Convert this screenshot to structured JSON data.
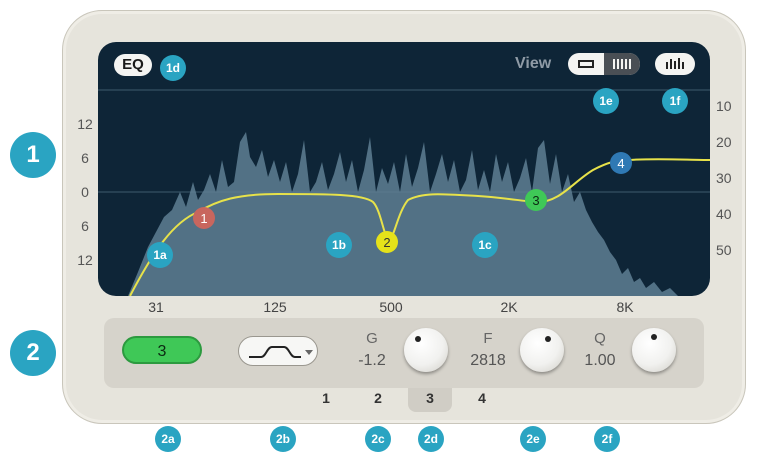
{
  "eq_window": {
    "eq_button_label": "EQ",
    "view_label": "View",
    "left_axis_labels": [
      "12",
      "6",
      "0",
      "6",
      "12"
    ],
    "right_axis_labels": [
      "10",
      "20",
      "30",
      "40",
      "50"
    ],
    "x_axis_labels": [
      "31",
      "125",
      "500",
      "2K",
      "8K"
    ],
    "band_nodes": [
      {
        "label": "1",
        "color": "#c8665e"
      },
      {
        "label": "2",
        "color": "#e5e21a"
      },
      {
        "label": "3",
        "color": "#3fc857"
      },
      {
        "label": "4",
        "color": "#2f79b4"
      }
    ]
  },
  "controls": {
    "selected_band": "3",
    "gain_label": "G",
    "gain_value": "-1.2",
    "freq_label": "F",
    "freq_value": "2818",
    "q_label": "Q",
    "q_value": "1.00",
    "band_tabs": [
      "1",
      "2",
      "3",
      "4"
    ],
    "active_band_tab": "3"
  },
  "callouts": {
    "section_1": "1",
    "section_2": "2",
    "labels": [
      "1a",
      "1b",
      "1c",
      "1d",
      "1e",
      "1f",
      "2a",
      "2b",
      "2c",
      "2d",
      "2e",
      "2f"
    ]
  },
  "colors": {
    "accent": "#2aa4c2",
    "curve": "#e7e24a",
    "background": "#0e2537",
    "spectrum": "#5e7f93"
  }
}
